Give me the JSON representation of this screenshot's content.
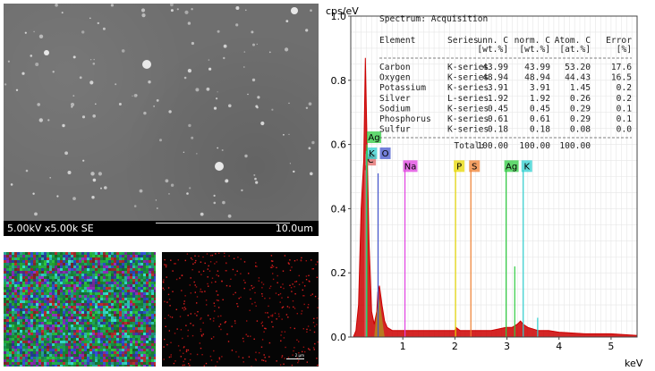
{
  "sem": {
    "left_label": "5.00kV x5.00k SE",
    "right_label": "10.0um"
  },
  "map2": {
    "scale_label": "2 µm"
  },
  "chart_data": {
    "type": "line",
    "title": "Spectrum: Acquisition",
    "xlabel": "keV",
    "ylabel": "cps/eV",
    "xlim": [
      0,
      5.5
    ],
    "ylim": [
      0,
      1.0
    ],
    "xticks": [
      1,
      2,
      3,
      4,
      5
    ],
    "yticks": [
      0.0,
      0.2,
      0.4,
      0.6,
      0.8,
      1.0
    ],
    "grid": true,
    "series": [
      {
        "color": "#cc0000",
        "x": [
          0.05,
          0.1,
          0.15,
          0.2,
          0.25,
          0.28,
          0.3,
          0.35,
          0.4,
          0.45,
          0.5,
          0.52,
          0.55,
          0.6,
          0.65,
          0.7,
          0.8,
          0.9,
          1.0,
          1.04,
          1.1,
          1.2,
          1.4,
          1.6,
          1.8,
          2.0,
          2.02,
          2.1,
          2.3,
          2.5,
          2.7,
          2.98,
          3.1,
          3.2,
          3.26,
          3.31,
          3.4,
          3.6,
          3.8,
          4.0,
          4.5,
          5.0,
          5.5
        ],
        "y": [
          0.0,
          0.02,
          0.1,
          0.4,
          0.55,
          0.87,
          0.7,
          0.3,
          0.08,
          0.04,
          0.08,
          0.14,
          0.16,
          0.1,
          0.05,
          0.03,
          0.02,
          0.02,
          0.02,
          0.02,
          0.02,
          0.02,
          0.02,
          0.02,
          0.02,
          0.02,
          0.03,
          0.02,
          0.02,
          0.02,
          0.02,
          0.03,
          0.03,
          0.04,
          0.05,
          0.04,
          0.03,
          0.02,
          0.02,
          0.015,
          0.01,
          0.01,
          0.005
        ]
      }
    ],
    "element_lines": [
      {
        "name": "C",
        "energy": 0.277,
        "height": 0.52,
        "color": "#e06666",
        "label_y": 0.54
      },
      {
        "name": "K",
        "energy": 0.3,
        "height": 0.58,
        "color": "#2fd0d0",
        "label_y": 0.56
      },
      {
        "name": "Ag",
        "energy": 0.31,
        "height": 0.6,
        "color": "#2ecc40",
        "label_y": 0.61
      },
      {
        "name": "O",
        "energy": 0.525,
        "height": 0.51,
        "color": "#4455cc",
        "label_y": 0.56
      },
      {
        "name": "Na",
        "energy": 1.041,
        "height": 0.52,
        "color": "#e040e0",
        "label_y": 0.52
      },
      {
        "name": "P",
        "energy": 2.013,
        "height": 0.52,
        "color": "#e8d800",
        "label_y": 0.52
      },
      {
        "name": "S",
        "energy": 2.307,
        "height": 0.52,
        "color": "#f08030",
        "label_y": 0.52
      },
      {
        "name": "Ag",
        "energy": 2.984,
        "height": 0.52,
        "color": "#2ecc40",
        "label_y": 0.52
      },
      {
        "name": "K",
        "energy": 3.313,
        "height": 0.52,
        "color": "#2fd0d0",
        "label_y": 0.52
      }
    ],
    "minor_peaks": [
      {
        "energy": 3.15,
        "height": 0.22,
        "color": "#2ecc40"
      },
      {
        "energy": 3.59,
        "height": 0.06,
        "color": "#2fd0d0"
      }
    ],
    "table": {
      "header_row1": [
        "Element",
        "Series",
        "unn. C",
        "norm. C",
        "Atom. C",
        "Error"
      ],
      "header_row2": [
        "",
        "",
        "[wt.%]",
        "[wt.%]",
        "[at.%]",
        "[%]"
      ],
      "rows": [
        [
          "Carbon",
          "K-series",
          "43.99",
          "43.99",
          "53.20",
          "17.6"
        ],
        [
          "Oxygen",
          "K-series",
          "48.94",
          "48.94",
          "44.43",
          "16.5"
        ],
        [
          "Potassium",
          "K-series",
          "3.91",
          "3.91",
          "1.45",
          "0.2"
        ],
        [
          "Silver",
          "L-series",
          "1.92",
          "1.92",
          "0.26",
          "0.2"
        ],
        [
          "Sodium",
          "K-series",
          "0.45",
          "0.45",
          "0.29",
          "0.1"
        ],
        [
          "Phosphorus",
          "K-series",
          "0.61",
          "0.61",
          "0.29",
          "0.1"
        ],
        [
          "Sulfur",
          "K-series",
          "0.18",
          "0.18",
          "0.08",
          "0.0"
        ]
      ],
      "total": [
        "Total:",
        "100.00",
        "100.00",
        "100.00"
      ]
    }
  }
}
